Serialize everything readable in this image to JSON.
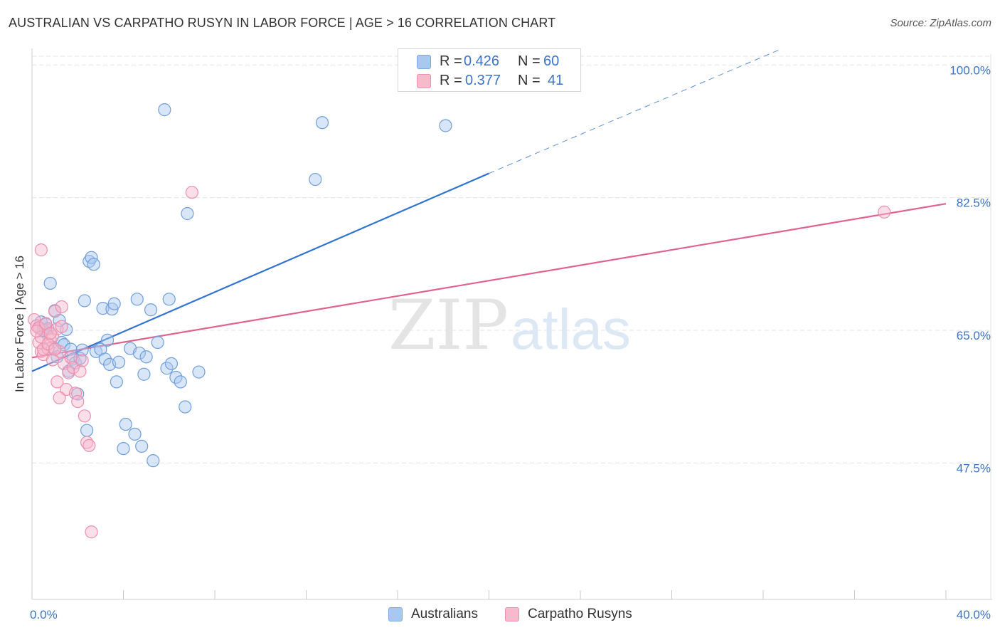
{
  "title": "AUSTRALIAN VS CARPATHO RUSYN IN LABOR FORCE | AGE > 16 CORRELATION CHART",
  "source": "Source: ZipAtlas.com",
  "watermark": {
    "zip": "ZIP",
    "atlas": "atlas"
  },
  "legend": {
    "r_label": "R =",
    "n_label": "N =",
    "series": [
      {
        "r": "0.426",
        "n": "60"
      },
      {
        "r": "0.377",
        "n": "41"
      }
    ]
  },
  "colors": {
    "blue_fill": "#a9c8ef",
    "blue_stroke": "#6f9fdc",
    "blue_line": "#2f74d0",
    "pink_fill": "#f7b9cc",
    "pink_stroke": "#ec8fae",
    "pink_line": "#e0638e",
    "tick_label": "#3a73c8"
  },
  "chart_data": {
    "type": "scatter",
    "title": "AUSTRALIAN VS CARPATHO RUSYN IN LABOR FORCE | AGE > 16 CORRELATION CHART",
    "xlabel": "",
    "ylabel": "In Labor Force | Age > 16",
    "xlim": [
      0,
      40
    ],
    "ylim": [
      29.5,
      102
    ],
    "x_tick_labels": [
      {
        "value": 0,
        "label": "0.0%"
      },
      {
        "value": 40,
        "label": "40.0%"
      }
    ],
    "x_minor_ticks": [
      0,
      4,
      8,
      12,
      16,
      20,
      24,
      28,
      32,
      36,
      40
    ],
    "y_ticks": [
      {
        "value": 100,
        "label": "100.0%"
      },
      {
        "value": 82.5,
        "label": "82.5%"
      },
      {
        "value": 65,
        "label": "65.0%"
      },
      {
        "value": 47.5,
        "label": "47.5%"
      }
    ],
    "grid": true,
    "series": [
      {
        "name": "Australians",
        "points": [
          [
            0.3,
            65.4
          ],
          [
            0.4,
            66.1
          ],
          [
            0.5,
            64.9
          ],
          [
            0.6,
            65.8
          ],
          [
            0.7,
            65.2
          ],
          [
            0.8,
            71.2
          ],
          [
            0.9,
            62.8
          ],
          [
            1.0,
            67.6
          ],
          [
            1.1,
            61.5
          ],
          [
            1.2,
            66.3
          ],
          [
            1.3,
            63.4
          ],
          [
            1.4,
            63.1
          ],
          [
            1.5,
            65.1
          ],
          [
            1.6,
            59.6
          ],
          [
            1.7,
            62.5
          ],
          [
            1.8,
            61.2
          ],
          [
            1.9,
            60.7
          ],
          [
            2.0,
            56.6
          ],
          [
            2.1,
            61.3
          ],
          [
            2.2,
            62.4
          ],
          [
            2.3,
            68.9
          ],
          [
            2.4,
            51.8
          ],
          [
            2.5,
            74.1
          ],
          [
            2.6,
            74.6
          ],
          [
            2.7,
            73.7
          ],
          [
            2.8,
            62.2
          ],
          [
            3.0,
            62.5
          ],
          [
            3.1,
            67.9
          ],
          [
            3.2,
            61.2
          ],
          [
            3.3,
            63.7
          ],
          [
            3.4,
            60.5
          ],
          [
            3.5,
            67.8
          ],
          [
            3.6,
            68.5
          ],
          [
            3.7,
            58.2
          ],
          [
            3.8,
            60.8
          ],
          [
            4.0,
            49.4
          ],
          [
            4.1,
            52.6
          ],
          [
            4.3,
            62.6
          ],
          [
            4.5,
            51.3
          ],
          [
            4.6,
            69.1
          ],
          [
            4.7,
            62.0
          ],
          [
            4.8,
            49.7
          ],
          [
            4.9,
            59.2
          ],
          [
            5.0,
            61.5
          ],
          [
            5.2,
            67.7
          ],
          [
            5.3,
            47.8
          ],
          [
            5.5,
            63.4
          ],
          [
            5.8,
            94.1
          ],
          [
            5.9,
            60.0
          ],
          [
            6.0,
            69.1
          ],
          [
            6.1,
            60.6
          ],
          [
            6.3,
            58.8
          ],
          [
            6.5,
            58.2
          ],
          [
            6.7,
            54.9
          ],
          [
            6.8,
            80.4
          ],
          [
            7.3,
            59.5
          ],
          [
            12.4,
            84.9
          ],
          [
            12.7,
            92.4
          ],
          [
            18.1,
            92.0
          ],
          [
            0.5,
            65.0
          ]
        ]
      },
      {
        "name": "Carpatho Rusyns",
        "points": [
          [
            0.1,
            66.4
          ],
          [
            0.2,
            65.6
          ],
          [
            0.3,
            63.4
          ],
          [
            0.4,
            62.2
          ],
          [
            0.5,
            61.8
          ],
          [
            0.6,
            65.1
          ],
          [
            0.7,
            62.6
          ],
          [
            0.8,
            63.7
          ],
          [
            0.9,
            64.2
          ],
          [
            1.0,
            67.5
          ],
          [
            1.1,
            65.2
          ],
          [
            1.2,
            62.2
          ],
          [
            1.3,
            68.1
          ],
          [
            1.4,
            60.6
          ],
          [
            1.5,
            57.2
          ],
          [
            1.6,
            59.4
          ],
          [
            1.7,
            61.4
          ],
          [
            1.8,
            60.1
          ],
          [
            1.9,
            56.7
          ],
          [
            2.0,
            55.6
          ],
          [
            2.1,
            59.6
          ],
          [
            2.2,
            61.0
          ],
          [
            2.3,
            53.7
          ],
          [
            2.4,
            50.2
          ],
          [
            2.5,
            49.8
          ],
          [
            2.6,
            38.4
          ],
          [
            0.3,
            65.3
          ],
          [
            0.4,
            64.1
          ],
          [
            0.5,
            62.5
          ],
          [
            0.6,
            65.9
          ],
          [
            0.7,
            63.2
          ],
          [
            0.8,
            64.6
          ],
          [
            0.9,
            61.1
          ],
          [
            1.0,
            62.5
          ],
          [
            1.1,
            58.2
          ],
          [
            1.2,
            56.1
          ],
          [
            1.3,
            65.5
          ],
          [
            0.4,
            75.6
          ],
          [
            7.0,
            83.2
          ],
          [
            37.3,
            80.6
          ],
          [
            0.2,
            64.9
          ]
        ]
      }
    ],
    "trendlines": [
      {
        "name": "Australians",
        "solid": [
          [
            0,
            59.6
          ],
          [
            20,
            85.7
          ]
        ],
        "dashed": [
          [
            20,
            85.7
          ],
          [
            32.7,
            102
          ]
        ]
      },
      {
        "name": "Carpatho Rusyns",
        "solid": [
          [
            0,
            61.4
          ],
          [
            40,
            81.7
          ]
        ]
      }
    ]
  },
  "bottom_legend": [
    {
      "label": "Australians"
    },
    {
      "label": "Carpatho Rusyns"
    }
  ]
}
